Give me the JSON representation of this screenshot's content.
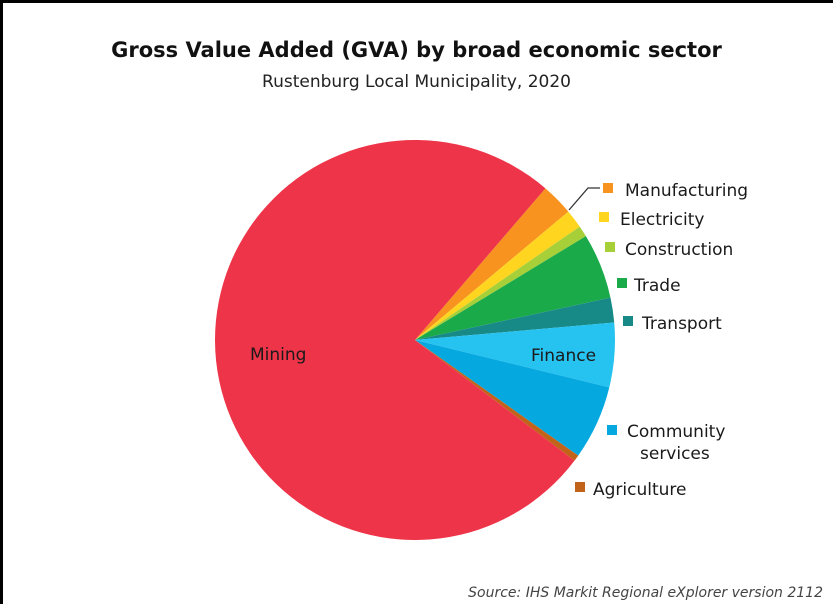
{
  "chart_data": {
    "type": "pie",
    "title": "Gross Value Added (GVA) by broad economic sector",
    "subtitle": "Rustenburg Local Municipality, 2020",
    "source": "Source: IHS Markit Regional eXplorer version 2112",
    "legend": "right",
    "slices": [
      {
        "label": "Mining",
        "value": 76.0,
        "color": "#EE3448"
      },
      {
        "label": "Manufacturing",
        "value": 2.6,
        "color": "#F7931E"
      },
      {
        "label": "Electricity",
        "value": 1.5,
        "color": "#FFD520"
      },
      {
        "label": "Construction",
        "value": 0.9,
        "color": "#A6CF38"
      },
      {
        "label": "Trade",
        "value": 5.3,
        "color": "#1BAA4A"
      },
      {
        "label": "Transport",
        "value": 2.0,
        "color": "#178A87"
      },
      {
        "label": "Finance",
        "value": 5.2,
        "color": "#27C3F0"
      },
      {
        "label": "Community services",
        "value": 6.0,
        "color": "#05A9E0"
      },
      {
        "label": "Agriculture",
        "value": 0.5,
        "color": "#C2631A"
      }
    ]
  }
}
